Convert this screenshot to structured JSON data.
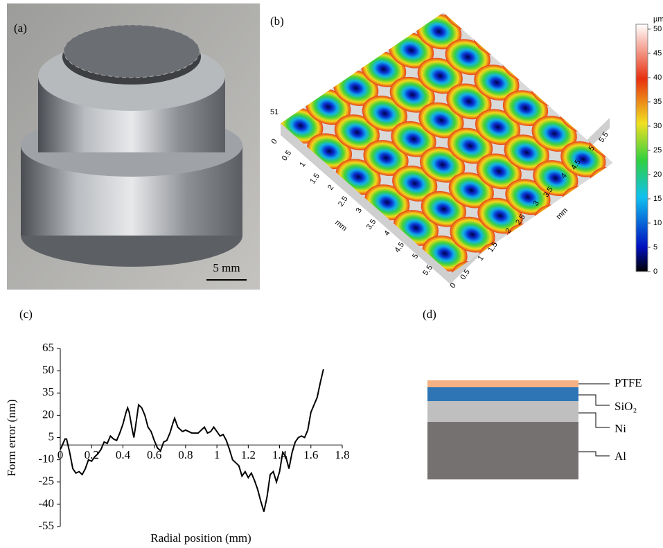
{
  "panel_a": {
    "label": "(a)",
    "scale_bar": "5 mm"
  },
  "panel_b": {
    "label": "(b)",
    "height_label": "51",
    "left_axis": {
      "title": "mm",
      "ticks": [
        0,
        0.5,
        1,
        1.5,
        2,
        2.5,
        3,
        3.5,
        4,
        4.5,
        5,
        5.5
      ]
    },
    "right_axis": {
      "title": "mm",
      "ticks": [
        0,
        0.5,
        1,
        1.5,
        2,
        2.5,
        3,
        3.5,
        4,
        4.5,
        5,
        5.5
      ]
    },
    "colorbar": {
      "unit": "µm",
      "lim": [
        0,
        51
      ],
      "ticks": [
        0,
        5,
        10,
        15,
        20,
        25,
        30,
        35,
        40,
        45,
        50
      ]
    }
  },
  "chart_data": {
    "type": "line",
    "label": "(c)",
    "xlabel": "Radial position (mm)",
    "ylabel": "Form error (nm)",
    "x": [
      0,
      0.01,
      0.03,
      0.04,
      0.06,
      0.08,
      0.1,
      0.12,
      0.14,
      0.16,
      0.18,
      0.2,
      0.22,
      0.24,
      0.26,
      0.28,
      0.3,
      0.32,
      0.34,
      0.36,
      0.38,
      0.4,
      0.42,
      0.43,
      0.44,
      0.46,
      0.47,
      0.48,
      0.5,
      0.52,
      0.54,
      0.56,
      0.58,
      0.6,
      0.62,
      0.64,
      0.66,
      0.68,
      0.7,
      0.72,
      0.73,
      0.75,
      0.78,
      0.8,
      0.84,
      0.88,
      0.9,
      0.92,
      0.94,
      0.96,
      0.98,
      1.0,
      1.02,
      1.04,
      1.06,
      1.08,
      1.1,
      1.14,
      1.16,
      1.18,
      1.2,
      1.22,
      1.24,
      1.26,
      1.28,
      1.3,
      1.32,
      1.34,
      1.36,
      1.38,
      1.4,
      1.42,
      1.44,
      1.46,
      1.48,
      1.5,
      1.52,
      1.54,
      1.56,
      1.58,
      1.6,
      1.64,
      1.66,
      1.68
    ],
    "series": [
      {
        "color": "#000000",
        "values": [
          -3,
          -1,
          4,
          4,
          -5,
          -16,
          -19,
          -18,
          -20,
          -16,
          -10,
          -11,
          -8,
          -6,
          -3,
          2,
          1,
          6,
          4,
          3,
          8,
          14,
          22,
          25,
          22,
          10,
          5,
          12,
          27,
          25,
          20,
          12,
          9,
          3,
          -2,
          -4,
          2,
          3,
          8,
          15,
          18,
          12,
          9,
          10,
          8,
          8,
          10,
          12,
          8,
          9,
          12,
          9,
          6,
          7,
          3,
          -3,
          -10,
          -14,
          -21,
          -18,
          -22,
          -19,
          -24,
          -30,
          -38,
          -45,
          -35,
          -20,
          -18,
          -25,
          -18,
          -5,
          -8,
          -16,
          -5,
          2,
          5,
          6,
          5,
          10,
          22,
          32,
          42,
          51
        ]
      }
    ],
    "xlim": [
      0,
      1.8
    ],
    "ylim": [
      -55,
      65
    ],
    "xticks": [
      0,
      0.2,
      0.4,
      0.6,
      0.8,
      1,
      1.2,
      1.4,
      1.6,
      1.8
    ],
    "yticks": [
      -55,
      -40,
      -25,
      -10,
      5,
      20,
      35,
      50,
      65
    ]
  },
  "panel_d": {
    "label": "(d)",
    "layers": [
      "PTFE",
      "SiO₂",
      "Ni",
      "Al"
    ]
  }
}
